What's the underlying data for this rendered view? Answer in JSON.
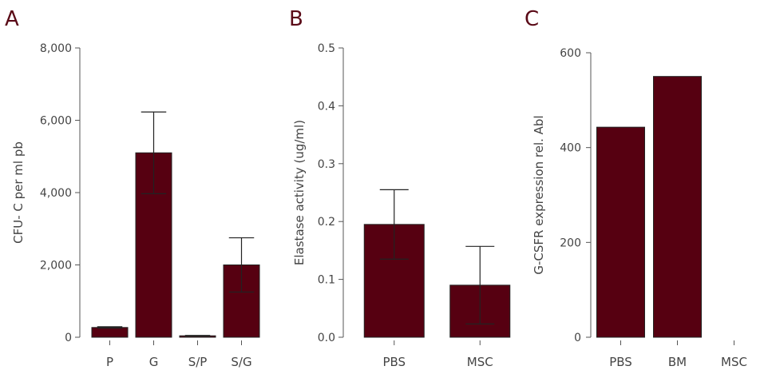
{
  "colors": {
    "bar": "#560011",
    "axis": "#555555",
    "text": "#444444",
    "panel_letter": "#5a0a17"
  },
  "chart_data": [
    {
      "type": "bar",
      "panel": "A",
      "ylabel": "CFU- C per ml pb",
      "xlabel": "",
      "categories": [
        "P",
        "G",
        "S/P",
        "S/G"
      ],
      "values": [
        270,
        5100,
        40,
        2000
      ],
      "errors": [
        20,
        1130,
        10,
        750
      ],
      "ylim": [
        0,
        8000
      ],
      "yticks": [
        0,
        2000,
        4000,
        6000,
        8000
      ],
      "ytick_labels": [
        "0",
        "2,000",
        "4,000",
        "6,000",
        "8,000"
      ],
      "grid": false
    },
    {
      "type": "bar",
      "panel": "B",
      "ylabel": "Elastase activity (ug/ml)",
      "xlabel": "",
      "categories": [
        "PBS",
        "MSC"
      ],
      "values": [
        0.195,
        0.09
      ],
      "errors": [
        0.06,
        0.067
      ],
      "ylim": [
        0,
        0.5
      ],
      "yticks": [
        0,
        0.1,
        0.2,
        0.3,
        0.4,
        0.5
      ],
      "ytick_labels": [
        "0.0",
        "0.1",
        "0.2",
        "0.3",
        "0.4",
        "0.5"
      ],
      "grid": false
    },
    {
      "type": "bar",
      "panel": "C",
      "ylabel": "G-CSFR expression rel. Abl",
      "xlabel": "",
      "categories": [
        "PBS",
        "BM",
        "MSC"
      ],
      "values": [
        443,
        550,
        0
      ],
      "errors": [
        0,
        0,
        0
      ],
      "ylim": [
        0,
        600
      ],
      "yticks": [
        0,
        200,
        400,
        600
      ],
      "ytick_labels": [
        "0",
        "200",
        "400",
        "600"
      ],
      "grid": false
    }
  ]
}
